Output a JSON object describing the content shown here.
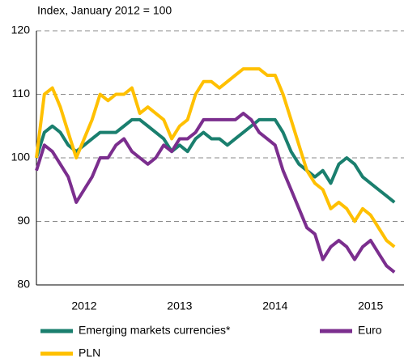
{
  "chart_data": {
    "type": "line",
    "subtitle": "Index, January 2012 = 100",
    "x": [
      2012,
      2012.083,
      2012.167,
      2012.25,
      2012.333,
      2012.417,
      2012.5,
      2012.583,
      2012.667,
      2012.75,
      2012.833,
      2012.917,
      2013,
      2013.083,
      2013.167,
      2013.25,
      2013.333,
      2013.417,
      2013.5,
      2013.583,
      2013.667,
      2013.75,
      2013.833,
      2013.917,
      2014,
      2014.083,
      2014.167,
      2014.25,
      2014.333,
      2014.417,
      2014.5,
      2014.583,
      2014.667,
      2014.75,
      2014.833,
      2014.917,
      2015,
      2015.083,
      2015.167,
      2015.25,
      2015.333,
      2015.417,
      2015.5,
      2015.583,
      2015.667,
      2015.75
    ],
    "series": [
      {
        "name": "Emerging markets currencies*",
        "color": "#1a7f6e",
        "values": [
          100,
          104,
          105,
          104,
          102,
          101,
          102,
          103,
          104,
          104,
          104,
          105,
          106,
          106,
          105,
          104,
          103,
          101,
          102,
          101,
          103,
          104,
          103,
          103,
          102,
          103,
          104,
          105,
          106,
          106,
          106,
          104,
          101,
          99,
          98,
          97,
          98,
          96,
          99,
          100,
          99,
          97,
          96,
          95,
          94,
          93
        ]
      },
      {
        "name": "Euro",
        "color": "#7b2e8e",
        "values": [
          98,
          102,
          101,
          99,
          97,
          93,
          95,
          97,
          100,
          100,
          102,
          103,
          101,
          100,
          99,
          100,
          102,
          101,
          103,
          103,
          104,
          106,
          106,
          106,
          106,
          106,
          107,
          106,
          104,
          103,
          102,
          98,
          95,
          92,
          89,
          88,
          84,
          86,
          87,
          86,
          84,
          86,
          87,
          85,
          83,
          82
        ]
      },
      {
        "name": "PLN",
        "color": "#ffc000",
        "values": [
          100,
          110,
          111,
          108,
          104,
          100,
          103,
          106,
          110,
          109,
          110,
          110,
          111,
          107,
          108,
          107,
          106,
          103,
          105,
          106,
          110,
          112,
          112,
          111,
          112,
          113,
          114,
          114,
          114,
          113,
          113,
          110,
          106,
          102,
          98,
          96,
          95,
          92,
          93,
          92,
          90,
          92,
          91,
          89,
          87,
          86
        ]
      }
    ],
    "xlim": [
      2012,
      2015.85
    ],
    "xticks": [
      {
        "value": 2012.5,
        "label": "2012"
      },
      {
        "value": 2013.5,
        "label": "2013"
      },
      {
        "value": 2014.5,
        "label": "2014"
      },
      {
        "value": 2015.5,
        "label": "2015"
      }
    ],
    "ylim": [
      80,
      120
    ],
    "yticks": [
      80,
      90,
      100,
      110,
      120
    ],
    "grid": true
  }
}
